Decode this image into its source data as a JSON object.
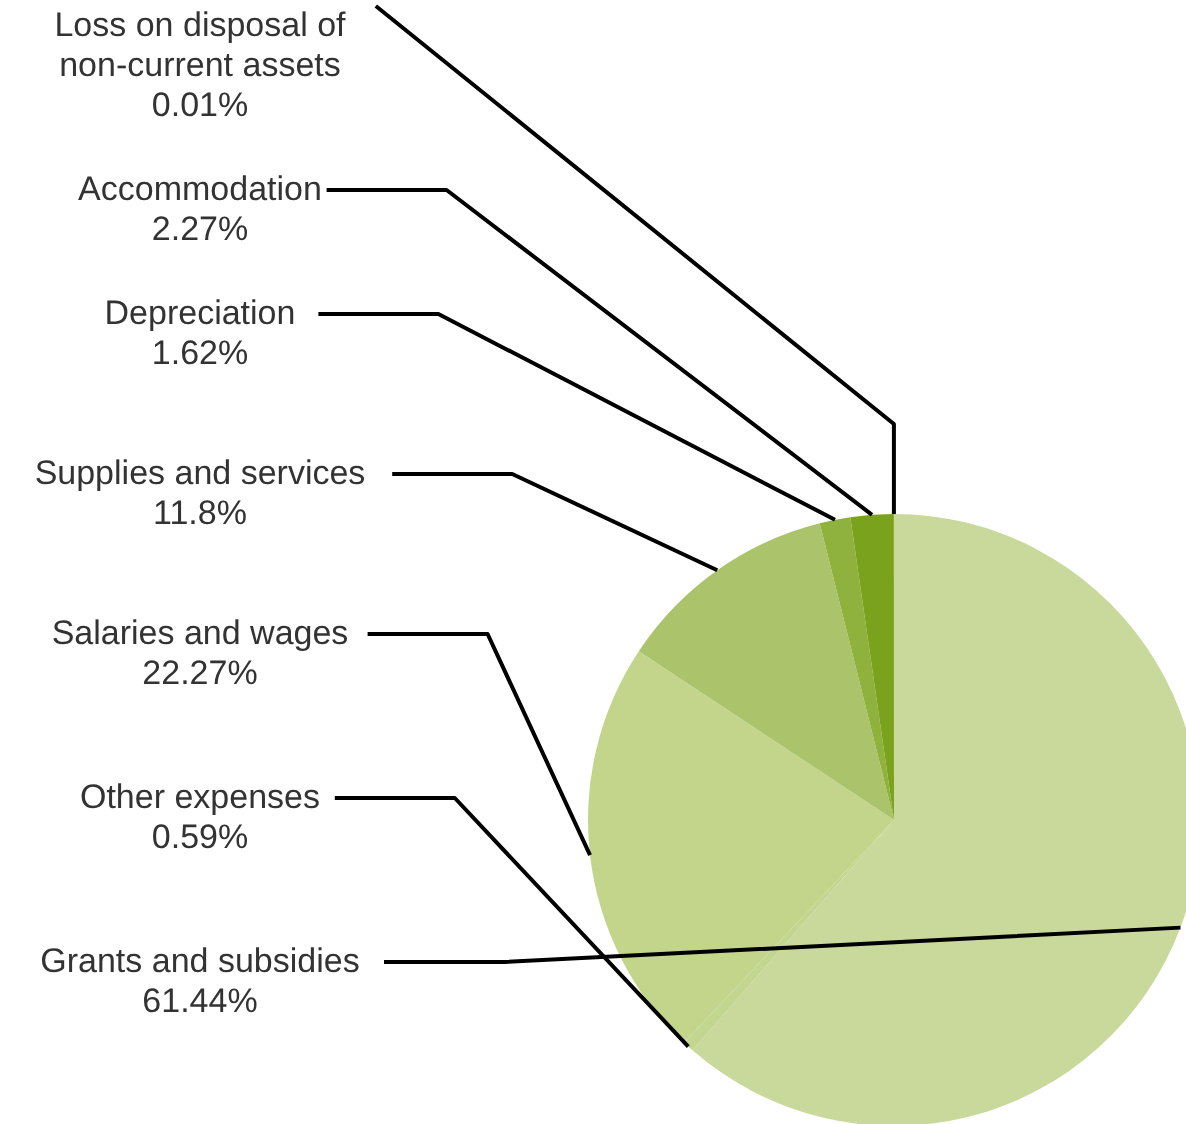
{
  "chart_data": {
    "type": "pie",
    "categories": [
      "Grants and subsidies",
      "Other expenses",
      "Salaries and wages",
      "Supplies and services",
      "Depreciation",
      "Accommodation",
      "Loss on disposal of non-current assets"
    ],
    "values": [
      61.44,
      0.59,
      22.27,
      11.8,
      1.62,
      2.27,
      0.01
    ],
    "value_labels": [
      "61.44%",
      "0.59%",
      "22.27%",
      "11.8%",
      "1.62%",
      "2.27%",
      "0.01%"
    ],
    "colors": [
      "#c9d89b",
      "#c3d68f",
      "#c2d58b",
      "#abc46c",
      "#8fb23e",
      "#7ba21d",
      "#6b900f"
    ],
    "legend": false
  }
}
